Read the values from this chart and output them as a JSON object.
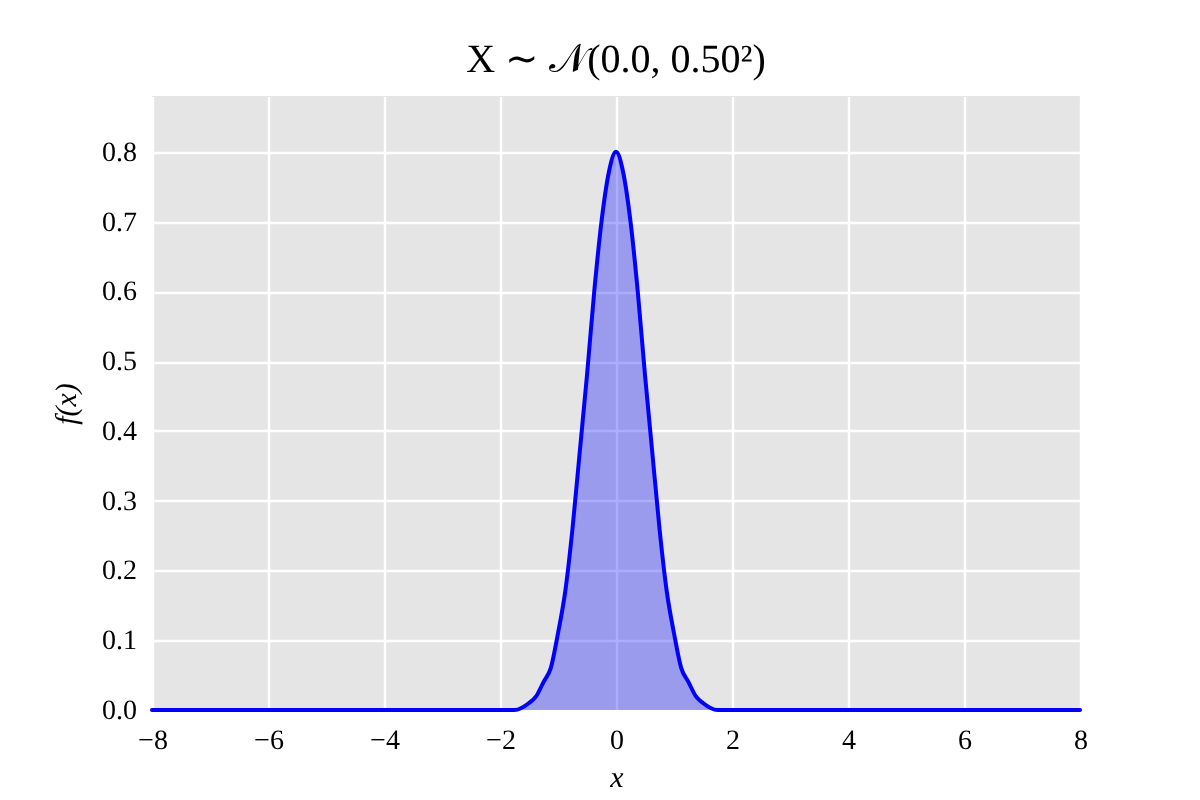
{
  "chart_data": {
    "type": "area",
    "title": "X ∼ 𝒩(0.0, 0.50²)",
    "xlabel": "x",
    "ylabel": "f(x)",
    "x": [
      -8,
      -2,
      -1.75,
      -1.5,
      -1.375,
      -1.25,
      -1.125,
      -1,
      -0.875,
      -0.75,
      -0.625,
      -0.5,
      -0.375,
      -0.25,
      -0.125,
      0,
      0.125,
      0.25,
      0.375,
      0.5,
      0.625,
      0.75,
      0.875,
      1,
      1.125,
      1.25,
      1.375,
      1.5,
      1.75,
      2,
      8
    ],
    "series": [
      {
        "color": "#0000ff",
        "values": [
          0,
          0,
          0,
          0.01,
          0.02,
          0.04,
          0.06,
          0.11,
          0.17,
          0.26,
          0.37,
          0.48,
          0.6,
          0.7,
          0.77,
          0.8,
          0.77,
          0.7,
          0.6,
          0.48,
          0.37,
          0.26,
          0.17,
          0.11,
          0.06,
          0.04,
          0.02,
          0.01,
          0,
          0,
          0
        ]
      }
    ],
    "xlim": [
      -8,
      8
    ],
    "ylim": [
      0,
      0.88
    ],
    "xticks": [
      -8,
      -6,
      -4,
      -2,
      0,
      2,
      4,
      6,
      8
    ],
    "yticks": [
      {
        "value": 0,
        "label": "0.0"
      },
      0.1,
      0.2,
      0.3,
      0.4,
      0.5,
      0.6,
      0.7,
      0.8
    ],
    "grid": true
  }
}
